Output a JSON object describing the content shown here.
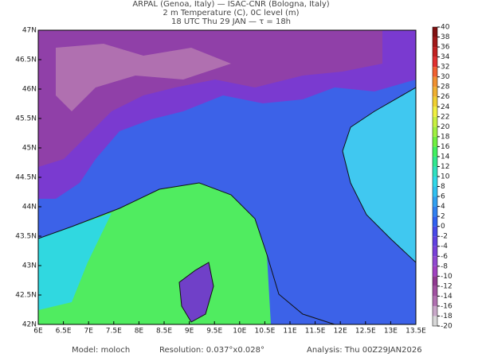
{
  "header": {
    "line1": "ARPAL (Genoa, Italy)  —  ISAC-CNR (Bologna, Italy)",
    "line2": "2 m Temperature (C), 0C level (m)",
    "line3": "18 UTC Thu 29 JAN  —  τ = 18h"
  },
  "map": {
    "xlim": [
      6,
      13.5
    ],
    "ylim": [
      42,
      47
    ],
    "xticks": [
      {
        "value": 6,
        "label": "6E"
      },
      {
        "value": 6.5,
        "label": "6.5E"
      },
      {
        "value": 7,
        "label": "7E"
      },
      {
        "value": 7.5,
        "label": "7.5E"
      },
      {
        "value": 8,
        "label": "8E"
      },
      {
        "value": 8.5,
        "label": "8.5E"
      },
      {
        "value": 9,
        "label": "9E"
      },
      {
        "value": 9.5,
        "label": "9.5E"
      },
      {
        "value": 10,
        "label": "10E"
      },
      {
        "value": 10.5,
        "label": "10.5E"
      },
      {
        "value": 11,
        "label": "11E"
      },
      {
        "value": 11.5,
        "label": "11.5E"
      },
      {
        "value": 12,
        "label": "12E"
      },
      {
        "value": 12.5,
        "label": "12.5E"
      },
      {
        "value": 13,
        "label": "13E"
      },
      {
        "value": 13.5,
        "label": "13.5E"
      }
    ],
    "yticks": [
      {
        "value": 42,
        "label": "42N"
      },
      {
        "value": 42.5,
        "label": "42.5N"
      },
      {
        "value": 43,
        "label": "43N"
      },
      {
        "value": 43.5,
        "label": "43.5N"
      },
      {
        "value": 44,
        "label": "44N"
      },
      {
        "value": 44.5,
        "label": "44.5N"
      },
      {
        "value": 45,
        "label": "45N"
      },
      {
        "value": 45.5,
        "label": "45.5N"
      },
      {
        "value": 46,
        "label": "46N"
      },
      {
        "value": 46.5,
        "label": "46.5N"
      },
      {
        "value": 47,
        "label": "47N"
      }
    ]
  },
  "colorbar": {
    "lim": [
      -20,
      40
    ],
    "ticks": [
      -20,
      -18,
      -16,
      -14,
      -12,
      -10,
      -8,
      -6,
      -4,
      -2,
      0,
      2,
      4,
      6,
      8,
      10,
      12,
      14,
      16,
      18,
      20,
      22,
      24,
      26,
      28,
      30,
      32,
      34,
      36,
      38,
      40
    ],
    "colors": [
      "#d8d8d8",
      "#c8a8c8",
      "#b070b0",
      "#a050a0",
      "#903890",
      "#a040c0",
      "#9048d0",
      "#7840d8",
      "#6040e0",
      "#4848e8",
      "#3060f0",
      "#3080f0",
      "#30a0f0",
      "#30c0f0",
      "#30d8e8",
      "#30e0c0",
      "#30e890",
      "#40f060",
      "#70f040",
      "#a0f040",
      "#c8f040",
      "#f0f040",
      "#f0d030",
      "#f0b030",
      "#f09030",
      "#f06030",
      "#e03030",
      "#c02020",
      "#a01818",
      "#801010"
    ]
  },
  "footer": {
    "model": "Model: moloch",
    "resolution": "Resolution: 0.037°x0.028°",
    "analysis": "Analysis: Thu 00Z29JAN2026"
  }
}
